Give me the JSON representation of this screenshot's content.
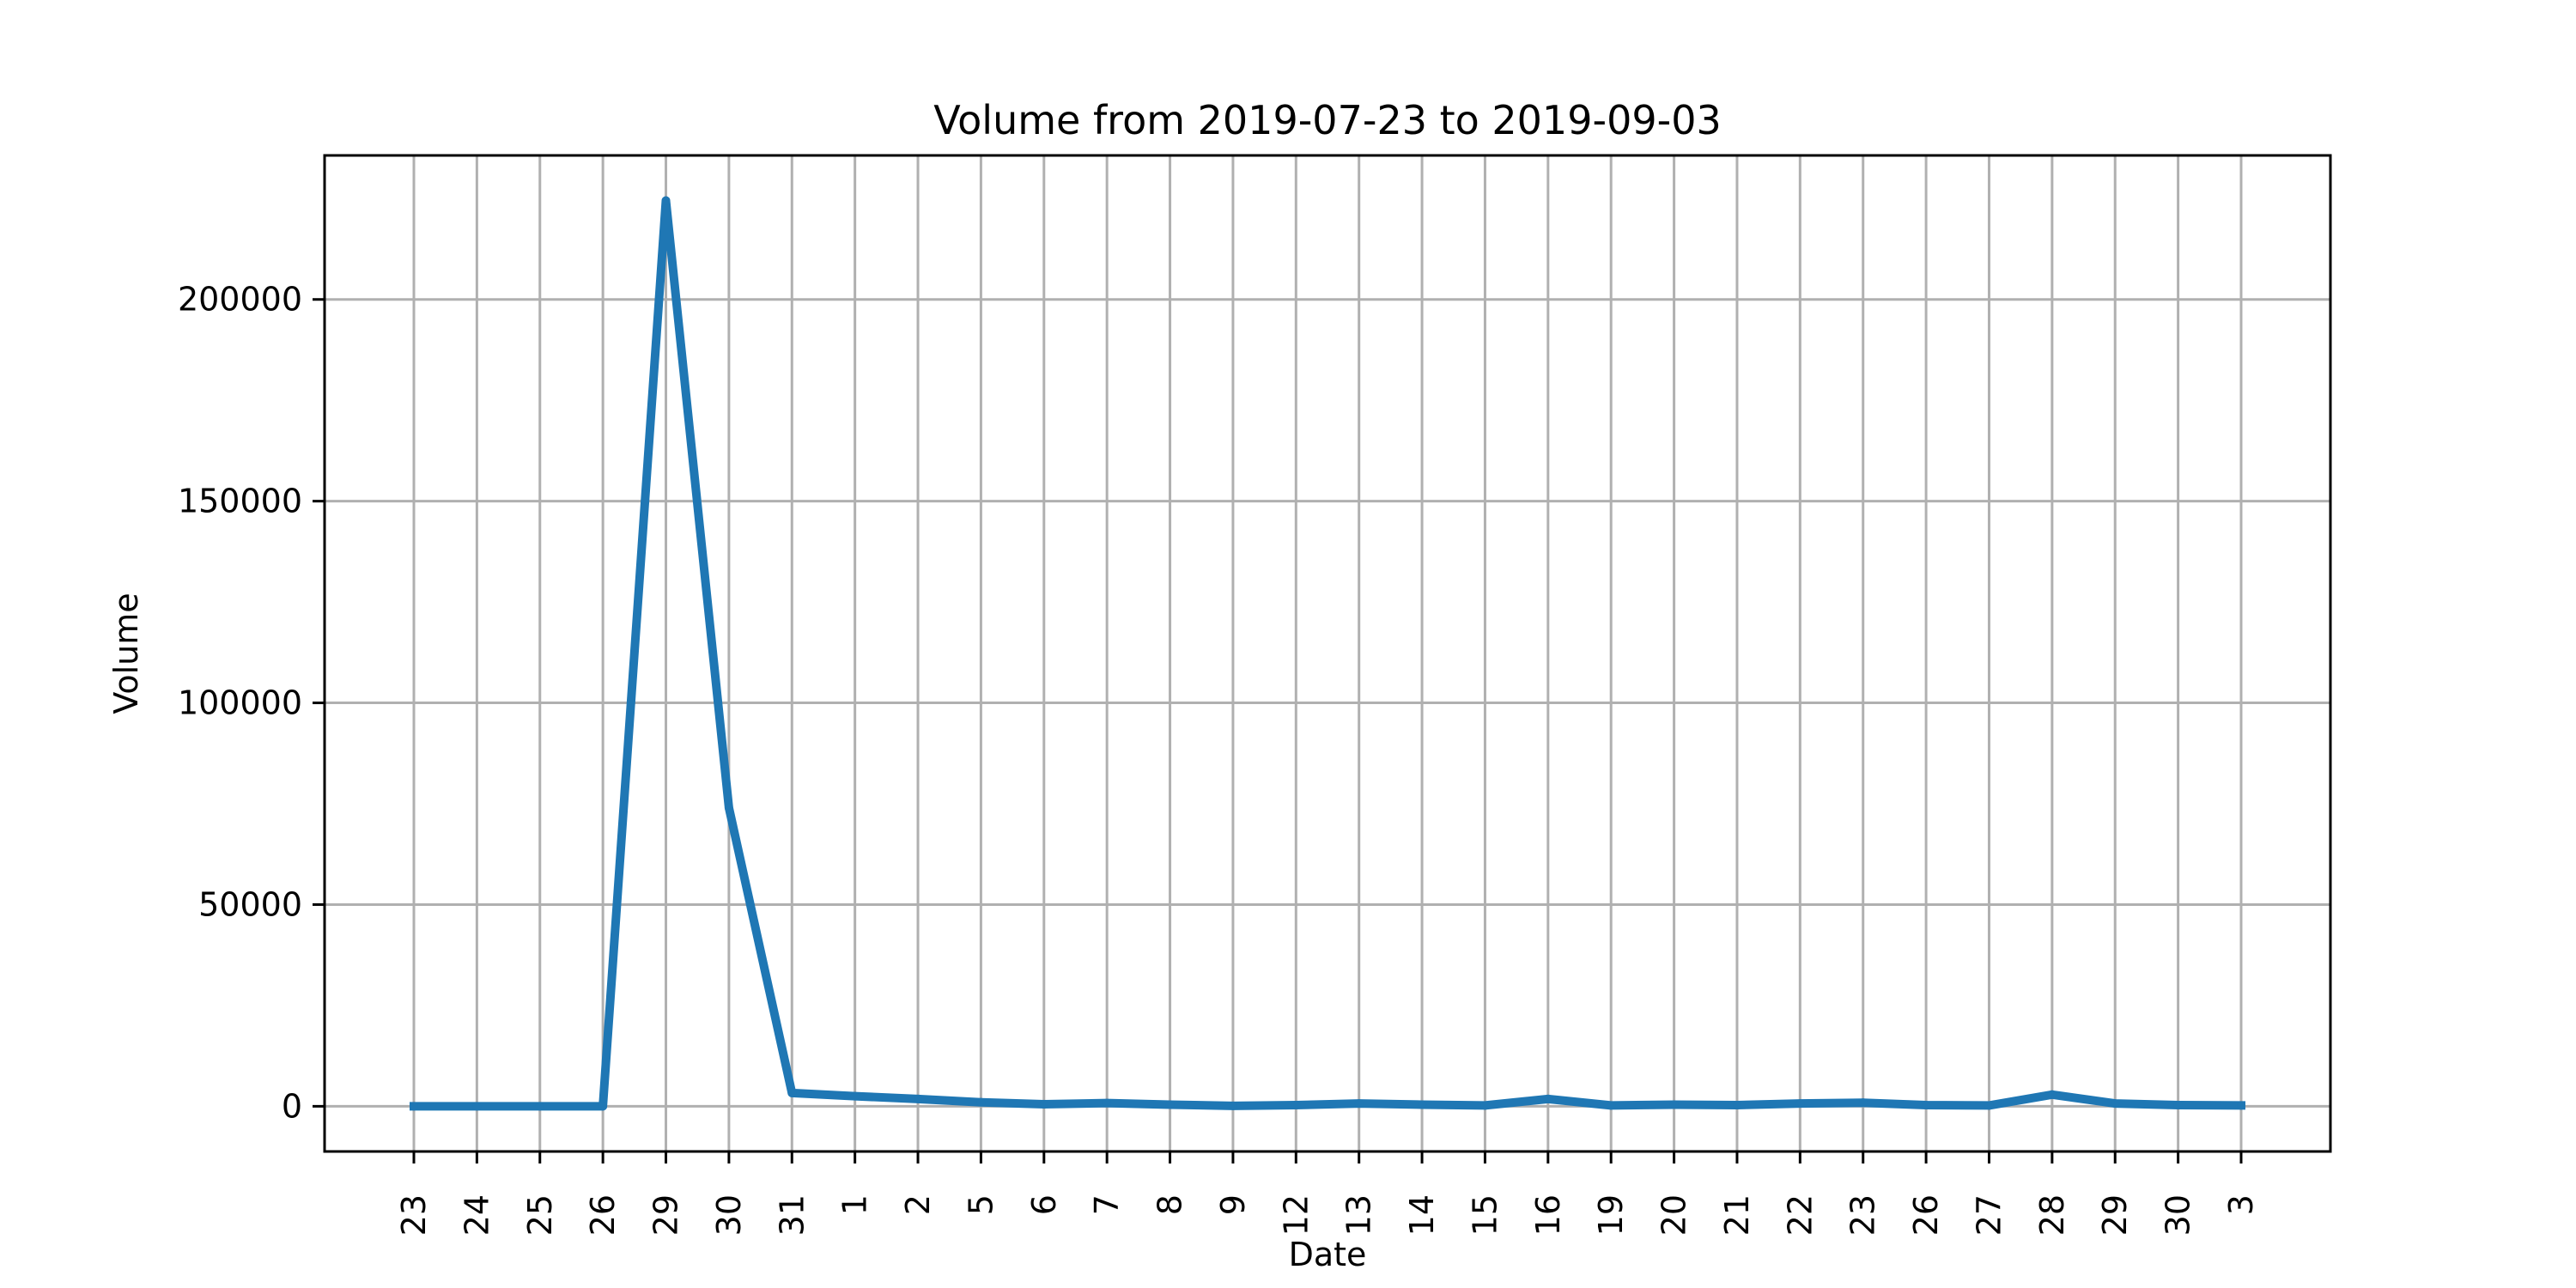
{
  "chart_data": {
    "type": "line",
    "title": "Volume from 2019-07-23 to 2019-09-03",
    "xlabel": "Date",
    "ylabel": "Volume",
    "x": [
      "2019-07-23",
      "2019-07-24",
      "2019-07-25",
      "2019-07-26",
      "2019-07-29",
      "2019-07-30",
      "2019-07-31",
      "2019-08-01",
      "2019-08-02",
      "2019-08-05",
      "2019-08-06",
      "2019-08-07",
      "2019-08-08",
      "2019-08-09",
      "2019-08-12",
      "2019-08-13",
      "2019-08-14",
      "2019-08-15",
      "2019-08-16",
      "2019-08-19",
      "2019-08-20",
      "2019-08-21",
      "2019-08-22",
      "2019-08-23",
      "2019-08-26",
      "2019-08-27",
      "2019-08-28",
      "2019-08-29",
      "2019-08-30",
      "2019-09-03"
    ],
    "tick_labels": [
      "23",
      "24",
      "25",
      "26",
      "29",
      "30",
      "31",
      "1",
      "2",
      "5",
      "6",
      "7",
      "8",
      "9",
      "12",
      "13",
      "14",
      "15",
      "16",
      "19",
      "20",
      "21",
      "22",
      "23",
      "26",
      "27",
      "28",
      "29",
      "30",
      "3"
    ],
    "series": [
      {
        "values": [
          0,
          0,
          0,
          0,
          224500,
          74000,
          3300,
          2500,
          1800,
          1000,
          500,
          800,
          400,
          100,
          300,
          700,
          400,
          200,
          1800,
          200,
          400,
          300,
          700,
          900,
          300,
          200,
          2900,
          700,
          300,
          200
        ],
        "color": "#1f77b4"
      }
    ],
    "ylim": [
      -11200,
      235700
    ],
    "yticks": [
      0,
      50000,
      100000,
      150000,
      200000
    ],
    "ytick_labels": [
      "0",
      "50000",
      "100000",
      "150000",
      "200000"
    ],
    "grid": true,
    "legend": "none"
  }
}
